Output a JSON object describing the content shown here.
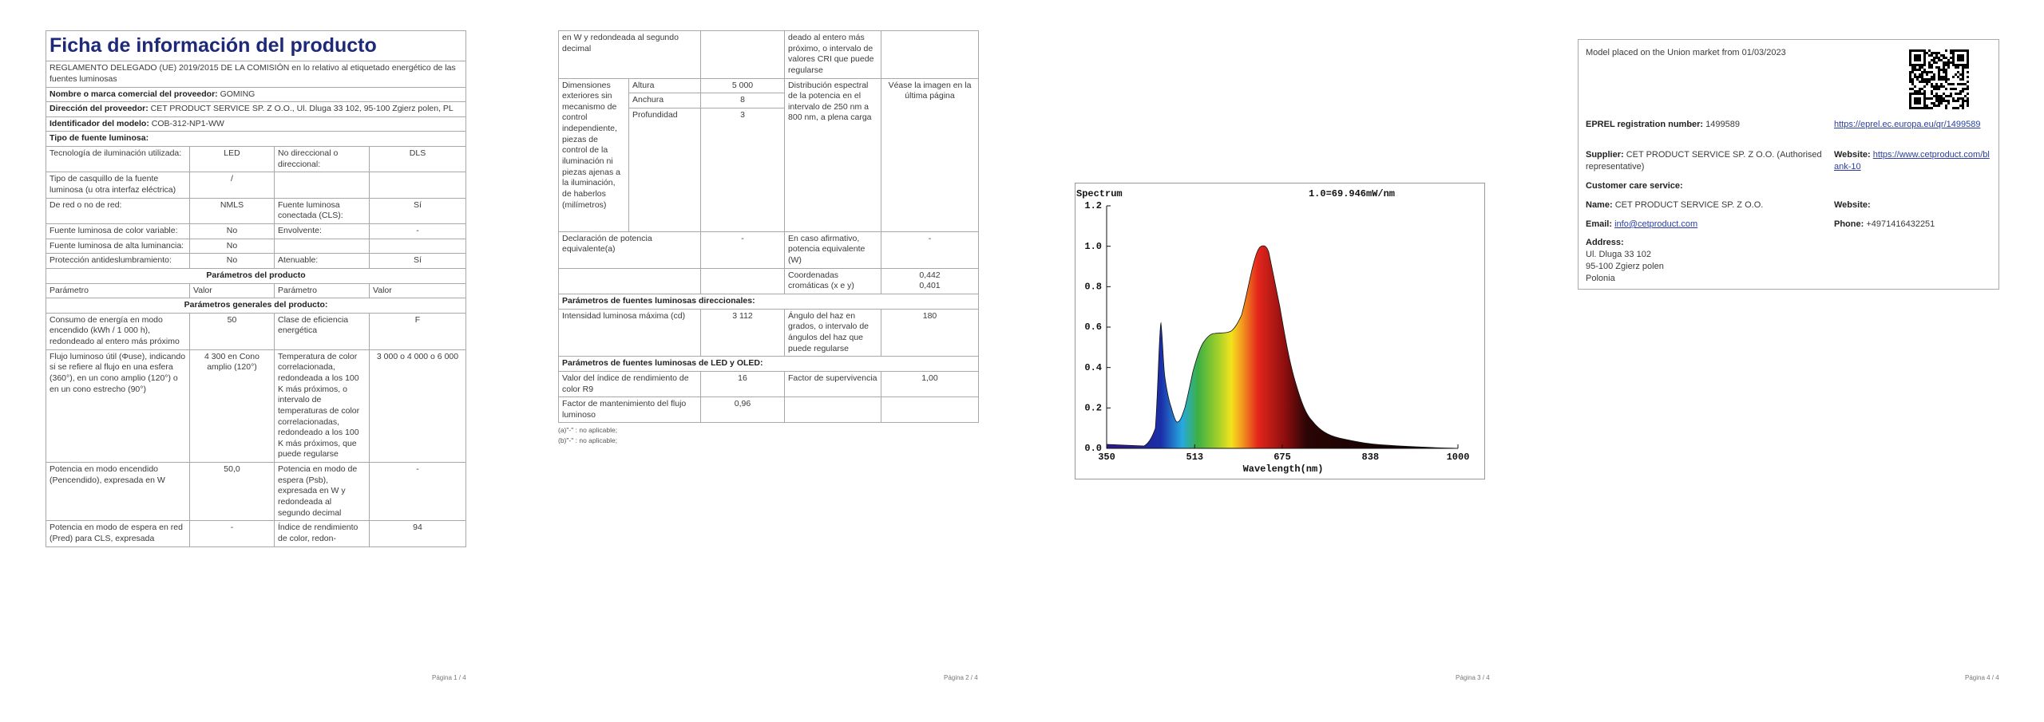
{
  "page1": {
    "title": "Ficha de información del producto",
    "regulation": "REGLAMENTO DELEGADO (UE) 2019/2015 DE LA COMISIÓN en lo relativo al etiquetado energético de las fuentes luminosas",
    "supplier": {
      "label": "Nombre o marca comercial del proveedor:",
      "value": "GOMING"
    },
    "address": {
      "label": "Dirección del proveedor:",
      "value": "CET PRODUCT SERVICE SP. Z O.O., Ul. Dluga 33 102, 95-100 Zgierz polen, PL"
    },
    "model": {
      "label": "Identificador del modelo:",
      "value": "COB-312-NP1-WW"
    },
    "type_heading": "Tipo de fuente luminosa:",
    "type_rows": [
      [
        "Tecnología de iluminación utilizada:",
        "LED",
        "No direccional o direccional:",
        "DLS"
      ],
      [
        "Tipo de casquillo de la fuente luminosa (u otra interfaz eléctrica)",
        "/"
      ],
      [
        "De red o no de red:",
        "NMLS",
        "Fuente luminosa conectada (CLS):",
        "Sí"
      ],
      [
        "Fuente luminosa de color variable:",
        "No",
        "Envolvente:",
        "-"
      ],
      [
        "Fuente luminosa de alta luminancia:",
        "No"
      ],
      [
        "Protección antideslumbramiento:",
        "No",
        "Atenuable:",
        "Sí"
      ]
    ],
    "params_heading": "Parámetros del producto",
    "params_header": [
      "Parámetro",
      "Valor",
      "Parámetro",
      "Valor"
    ],
    "general_heading": "Parámetros generales del producto:",
    "general_rows": [
      [
        "Consumo de energía en modo encendido (kWh / 1 000 h), redondeado al entero más próximo",
        "50",
        "Clase de eficiencia energética",
        "F"
      ],
      [
        "Flujo luminoso útil (Φuse), indicando si se refiere al flujo en una esfera (360°), en un cono amplio (120°) o en un cono estrecho (90°)",
        "4 300 en Cono amplio (120°)",
        "Temperatura de color correlacionada, redondeada a los 100 K más próximos, o intervalo de temperaturas de color correlacionadas, redondeado a los 100 K más próximos, que puede regularse",
        "3 000 o 4 000 o 6 000"
      ],
      [
        "Potencia en modo encendido (Pencendido), expresada en W",
        "50,0",
        "Potencia en modo de espera (Psb), expresada en W y redondeada al segundo decimal",
        "-"
      ],
      [
        "Potencia en modo de espera en red (Pred) para CLS, expresada",
        "-",
        "Índice de rendimiento de color, redon-",
        "94"
      ]
    ],
    "page_number": "Página 1 / 4"
  },
  "page2": {
    "continuation": [
      "en W y redondeada al segundo decimal",
      "deado al entero más próximo, o intervalo de valores CRI que puede regularse"
    ],
    "dimensions": {
      "label": "Dimensiones exteriores sin mecanismo de control independiente, piezas de control de la iluminación ni piezas ajenas a la iluminación, de haberlos (milímetros)",
      "items": [
        [
          "Altura",
          "5 000"
        ],
        [
          "Anchura",
          "8"
        ],
        [
          "Profundidad",
          "3"
        ]
      ],
      "spectrum_label": "Distribución espectral de la potencia en el intervalo de 250 nm a 800 nm, a plena carga",
      "spectrum_value": "Véase la imagen en la última página"
    },
    "equivalent": [
      "Declaración de potencia equivalente(a)",
      "-",
      "En caso afirmativo, potencia equivalente (W)",
      "-"
    ],
    "chromaticity": {
      "label": "Coordenadas cromáticas (x e y)",
      "values": [
        "0,442",
        "0,401"
      ]
    },
    "directional_heading": "Parámetros de fuentes luminosas direccionales:",
    "directional_row": [
      "Intensidad luminosa máxima (cd)",
      "3 112",
      "Ángulo del haz en grados, o intervalo de ángulos del haz que puede regularse",
      "180"
    ],
    "led_heading": "Parámetros de fuentes luminosas de LED y OLED:",
    "led_rows": [
      [
        "Valor del índice de rendimiento de color R9",
        "16",
        "Factor de supervivencia",
        "1,00"
      ],
      [
        "Factor de mantenimiento del flujo luminoso",
        "0,96"
      ]
    ],
    "notes": [
      "(a)\"-\" : no aplicable;",
      "(b)\"-\" : no aplicable;"
    ],
    "page_number": "Página 2 / 4"
  },
  "page3": {
    "spectrum": {
      "title": "Spectrum",
      "annotation": "1.0=69.946mW/nm",
      "x_label": "Wavelength(nm)",
      "xlim": [
        350,
        1000
      ],
      "xticks": [
        350,
        513,
        675,
        838,
        1000
      ],
      "ylim": [
        0,
        1.2
      ],
      "yticks": [
        {
          "value": 0,
          "label": "0.0"
        },
        0.2,
        0.4,
        0.6,
        0.8,
        {
          "value": 1,
          "label": "1.0"
        },
        1.2
      ]
    },
    "page_number": "Página 3 / 4"
  },
  "page4": {
    "market": "Model placed on the Union market from 01/03/2023",
    "eprel": {
      "label": "EPREL registration number:",
      "value": "1499589",
      "link": "https://eprel.ec.europa.eu/qr/1499589"
    },
    "supplier": {
      "label": "Supplier:",
      "value": "CET PRODUCT SERVICE SP. Z O.O. (Authorised representative)"
    },
    "website": {
      "label": "Website:",
      "value": "https://www.cetproduct.com/blank-10"
    },
    "customer_care": "Customer care service:",
    "name": {
      "label": "Name:",
      "value": "CET PRODUCT SERVICE SP. Z O.O."
    },
    "care_website": {
      "label": "Website:"
    },
    "email": {
      "label": "Email:",
      "value": "info@cetproduct.com"
    },
    "phone": {
      "label": "Phone:",
      "value": "+4971416432251"
    },
    "address": {
      "label": "Address:",
      "lines": [
        "Ul. Dluga 33 102",
        "95-100 Zgierz polen",
        "Polonia"
      ]
    },
    "page_number": "Página 4 / 4"
  }
}
